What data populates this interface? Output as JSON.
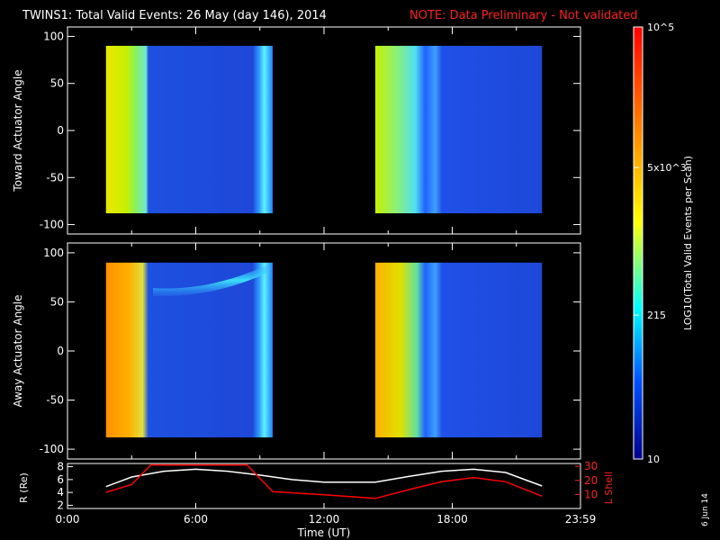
{
  "header": {
    "title": "TWINS1: Total Valid Events: 26 May (day 146), 2014",
    "note": "NOTE: Data Preliminary - Not validated"
  },
  "colorbar": {
    "label": "LOG10(Total Valid Events per Scan)",
    "tick_labels": [
      "10^5",
      "5x10^3",
      "215",
      "10"
    ],
    "colors": [
      "#ff0000",
      "#ff8c00",
      "#ffff00",
      "#00ffff",
      "#0050ff",
      "#00008b"
    ]
  },
  "footer": {
    "date_stamp": "6 Jun 14"
  },
  "chart_data": [
    {
      "type": "heatmap",
      "name": "toward",
      "ylabel": "Toward Actuator Angle",
      "xlim": [
        0,
        24
      ],
      "ylim": [
        -110,
        110
      ],
      "yticks": [
        "100",
        "50",
        "0",
        "-50",
        "-100"
      ],
      "scale": "log",
      "data_blocks": [
        {
          "x_start": 1.8,
          "x_end": 9.6,
          "y_start": -88,
          "y_end": 90
        },
        {
          "x_start": 14.4,
          "x_end": 22.2,
          "y_start": -88,
          "y_end": 90
        }
      ],
      "colors": [
        "#00ffff",
        "#0050ff",
        "#00008b",
        "#ffff00",
        "#ff8c00",
        "#ff0000"
      ]
    },
    {
      "type": "heatmap",
      "name": "away",
      "ylabel": "Away Actuator Angle",
      "xlim": [
        0,
        24
      ],
      "ylim": [
        -110,
        110
      ],
      "yticks": [
        "100",
        "50",
        "0",
        "-50",
        "-100"
      ],
      "scale": "log",
      "data_blocks": [
        {
          "x_start": 1.8,
          "x_end": 9.6,
          "y_start": -88,
          "y_end": 90
        },
        {
          "x_start": 14.4,
          "x_end": 22.2,
          "y_start": -88,
          "y_end": 90
        }
      ]
    },
    {
      "type": "line",
      "name": "orbit",
      "xlabel": "Time (UT)",
      "ylabel_left": "R (Re)",
      "ylabel_right": "L Shell",
      "x_ticks": [
        "0:00",
        "6:00",
        "12:00",
        "18:00",
        "23:59"
      ],
      "left_yticks": [
        "2",
        "4",
        "6",
        "8"
      ],
      "right_yticks": [
        "10",
        "20",
        "30"
      ],
      "ylim_left": [
        1.5,
        8.5
      ],
      "ylim_right": [
        0,
        32
      ],
      "series": [
        {
          "name": "R",
          "color": "#ffffff",
          "x": [
            1.8,
            3,
            4.5,
            6,
            7.5,
            9,
            10.5,
            12,
            13.5,
            14.4,
            16,
            17.5,
            19,
            20.5,
            22.2
          ],
          "y": [
            4.9,
            6.4,
            7.3,
            7.6,
            7.3,
            6.7,
            6.0,
            5.6,
            5.6,
            5.6,
            6.5,
            7.3,
            7.6,
            7.1,
            5.0
          ]
        },
        {
          "name": "L",
          "color": "#ff0000",
          "x": [
            1.8,
            3,
            3.9,
            8.4,
            9.6,
            12,
            14.4,
            16,
            17.5,
            19,
            20.5,
            22.2
          ],
          "y": [
            11.5,
            17.0,
            31.0,
            31.0,
            12.0,
            9.8,
            7.2,
            13.5,
            19.0,
            22.0,
            19.0,
            8.8
          ]
        }
      ]
    }
  ]
}
